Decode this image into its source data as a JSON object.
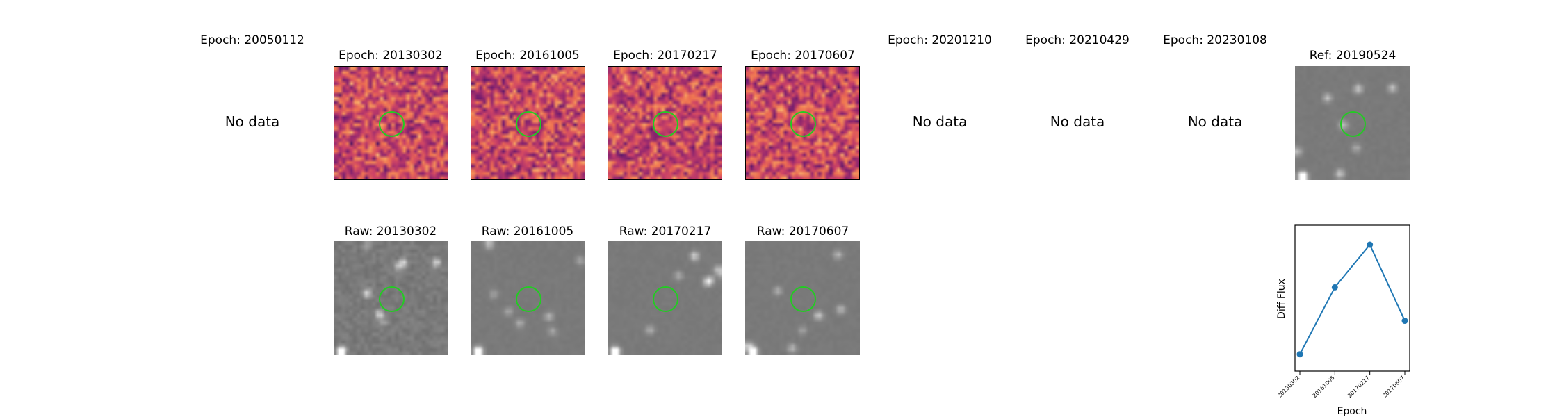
{
  "top_row": [
    {
      "title": "Epoch: 20050112",
      "has_data": false,
      "no_data_text": "No data"
    },
    {
      "title": "Epoch: 20130302",
      "has_data": true,
      "seed": 11
    },
    {
      "title": "Epoch: 20161005",
      "has_data": true,
      "seed": 23
    },
    {
      "title": "Epoch: 20170217",
      "has_data": true,
      "seed": 37
    },
    {
      "title": "Epoch: 20170607",
      "has_data": true,
      "seed": 51
    },
    {
      "title": "Epoch: 20201210",
      "has_data": false,
      "no_data_text": "No data"
    },
    {
      "title": "Epoch: 20210429",
      "has_data": false,
      "no_data_text": "No data"
    },
    {
      "title": "Epoch: 20230108",
      "has_data": false,
      "no_data_text": "No data"
    },
    {
      "title": "Ref: 20190524",
      "has_data": true,
      "seed": 77
    }
  ],
  "bottom_row": [
    {
      "title": "Raw: 20130302",
      "seed": 101
    },
    {
      "title": "Raw: 20161005",
      "seed": 202
    },
    {
      "title": "Raw: 20170217",
      "seed": 303
    },
    {
      "title": "Raw: 20170607",
      "seed": 404
    }
  ],
  "colors": {
    "aperture": "#22cc22",
    "diff_cmap": [
      "#2b1150",
      "#6a1a6e",
      "#9c2b6e",
      "#cf4466",
      "#ee7050",
      "#f7a060",
      "#fcd49a"
    ],
    "gray_base": "#7a7a7a",
    "line": "#1f77b4"
  },
  "chart_data": {
    "type": "line",
    "xlabel": "Epoch",
    "ylabel": "Diff Flux",
    "categories": [
      "20130302",
      "20161005",
      "20170217",
      "20170607"
    ],
    "series": [
      {
        "values": [
          0.05,
          0.63,
          1.0,
          0.34
        ]
      }
    ],
    "y_tick_labels": false,
    "grid": false
  }
}
